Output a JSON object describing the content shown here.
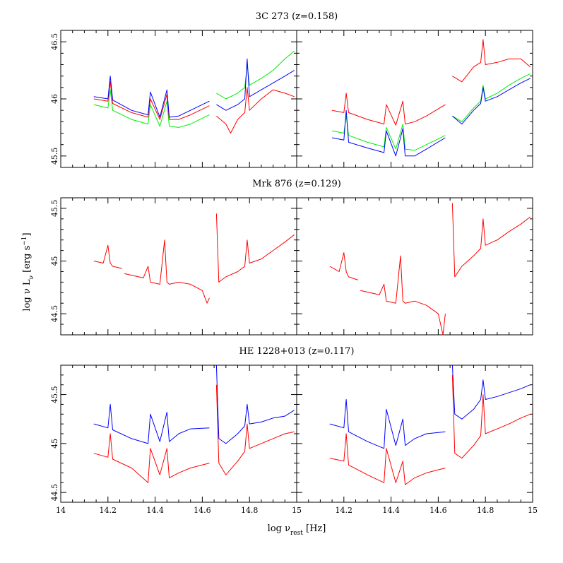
{
  "figure": {
    "ylabel_prefix": "log ν L",
    "ylabel_sub": "ν",
    "ylabel_units": " [erg s",
    "ylabel_exp": "−1",
    "ylabel_close": "]",
    "xlabel_prefix": "log ν",
    "xlabel_sub": "rest",
    "xlabel_units": " [Hz]"
  },
  "colors": {
    "red": "#ff0000",
    "green": "#00ee00",
    "blue": "#0000ff"
  },
  "chart_data": [
    {
      "type": "line",
      "title": "3C 273 (z=0.158)",
      "xlim": [
        14,
        15
      ],
      "ylim": [
        45.4,
        46.6
      ],
      "xticks": [
        "14",
        "14.2",
        "14.4",
        "14.6",
        "14.8",
        "15"
      ],
      "yticks": [
        "45.5",
        "46",
        "46.5"
      ],
      "ytick_values": [
        45.5,
        46,
        46.5
      ],
      "panels": [
        {
          "series": [
            {
              "color": "green",
              "x": [
                14.14,
                14.2,
                14.21,
                14.22,
                14.3,
                14.37,
                14.38,
                14.42,
                14.45,
                14.46,
                14.5,
                14.55,
                14.63
              ],
              "y": [
                45.95,
                45.92,
                46.08,
                45.9,
                45.82,
                45.78,
                45.95,
                45.76,
                45.98,
                45.76,
                45.75,
                45.78,
                45.86
              ]
            },
            {
              "color": "red",
              "x": [
                14.14,
                14.2,
                14.21,
                14.22,
                14.3,
                14.37,
                14.38,
                14.42,
                14.45,
                14.46,
                14.5,
                14.55,
                14.63
              ],
              "y": [
                46.0,
                45.98,
                46.15,
                45.96,
                45.88,
                45.84,
                46.0,
                45.82,
                46.04,
                45.82,
                45.82,
                45.86,
                45.94
              ]
            },
            {
              "color": "blue",
              "x": [
                14.14,
                14.2,
                14.21,
                14.22,
                14.3,
                14.37,
                14.38,
                14.42,
                14.45,
                14.46,
                14.5,
                14.55,
                14.63
              ],
              "y": [
                46.02,
                46.0,
                46.2,
                45.99,
                45.9,
                45.86,
                46.06,
                45.84,
                46.08,
                45.84,
                45.85,
                45.9,
                45.98
              ]
            },
            {
              "color": "green",
              "x": [
                14.66,
                14.7,
                14.75,
                14.78,
                14.79,
                14.8,
                14.85,
                14.9,
                14.95,
                14.99
              ],
              "y": [
                46.05,
                46.0,
                46.05,
                46.1,
                46.3,
                46.12,
                46.18,
                46.25,
                46.35,
                46.42
              ]
            },
            {
              "color": "red",
              "x": [
                14.66,
                14.7,
                14.72,
                14.75,
                14.78,
                14.79,
                14.8,
                14.85,
                14.9,
                14.95,
                14.99
              ],
              "y": [
                45.85,
                45.78,
                45.7,
                45.82,
                45.88,
                46.1,
                45.9,
                46.0,
                46.08,
                46.05,
                46.02
              ]
            },
            {
              "color": "blue",
              "x": [
                14.66,
                14.7,
                14.75,
                14.78,
                14.79,
                14.8,
                14.85,
                14.9,
                14.95,
                14.99
              ],
              "y": [
                45.95,
                45.9,
                45.95,
                46.0,
                46.35,
                46.02,
                46.08,
                46.14,
                46.2,
                46.25
              ]
            }
          ]
        },
        {
          "series": [
            {
              "color": "red",
              "x": [
                14.15,
                14.2,
                14.21,
                14.22,
                14.3,
                14.37,
                14.38,
                14.42,
                14.45,
                14.46,
                14.5,
                14.55,
                14.63
              ],
              "y": [
                45.9,
                45.88,
                46.05,
                45.88,
                45.82,
                45.78,
                45.95,
                45.77,
                45.98,
                45.78,
                45.8,
                45.85,
                45.95
              ]
            },
            {
              "color": "green",
              "x": [
                14.15,
                14.2,
                14.21,
                14.22,
                14.3,
                14.37,
                14.38,
                14.42,
                14.45,
                14.46,
                14.5,
                14.55,
                14.63
              ],
              "y": [
                45.72,
                45.7,
                45.85,
                45.68,
                45.62,
                45.58,
                45.75,
                45.56,
                45.78,
                45.56,
                45.55,
                45.6,
                45.68
              ]
            },
            {
              "color": "blue",
              "x": [
                14.15,
                14.2,
                14.21,
                14.22,
                14.3,
                14.37,
                14.38,
                14.42,
                14.45,
                14.46,
                14.5,
                14.55,
                14.63
              ],
              "y": [
                45.66,
                45.64,
                45.9,
                45.62,
                45.57,
                45.53,
                45.72,
                45.5,
                45.74,
                45.5,
                45.5,
                45.56,
                45.66
              ]
            },
            {
              "color": "red",
              "x": [
                14.66,
                14.7,
                14.75,
                14.78,
                14.79,
                14.8,
                14.85,
                14.9,
                14.95,
                14.99
              ],
              "y": [
                46.2,
                46.15,
                46.28,
                46.32,
                46.52,
                46.3,
                46.32,
                46.35,
                46.35,
                46.28
              ]
            },
            {
              "color": "green",
              "x": [
                14.66,
                14.7,
                14.75,
                14.78,
                14.79,
                14.8,
                14.85,
                14.9,
                14.95,
                14.99
              ],
              "y": [
                45.85,
                45.8,
                45.92,
                45.98,
                46.12,
                46.0,
                46.05,
                46.12,
                46.18,
                46.22
              ]
            },
            {
              "color": "blue",
              "x": [
                14.66,
                14.7,
                14.75,
                14.78,
                14.79,
                14.8,
                14.85,
                14.9,
                14.95,
                14.99
              ],
              "y": [
                45.85,
                45.78,
                45.9,
                45.96,
                46.1,
                45.98,
                46.02,
                46.08,
                46.14,
                46.18
              ]
            }
          ]
        }
      ]
    },
    {
      "type": "line",
      "title": "Mrk 876 (z=0.129)",
      "xlim": [
        14,
        15
      ],
      "ylim": [
        44.3,
        45.6
      ],
      "xticks": [
        "14",
        "14.2",
        "14.4",
        "14.6",
        "14.8",
        "15"
      ],
      "yticks": [
        "44.5",
        "45",
        "45.5"
      ],
      "ytick_values": [
        44.5,
        45,
        45.5
      ],
      "panels": [
        {
          "series": [
            {
              "color": "red",
              "x": [
                14.14,
                14.18,
                14.2,
                14.21,
                14.22,
                14.26
              ],
              "y": [
                45.0,
                44.98,
                45.15,
                44.98,
                44.95,
                44.93
              ]
            },
            {
              "color": "red",
              "x": [
                14.27,
                14.35,
                14.37,
                14.38,
                14.42,
                14.44,
                14.45,
                14.46,
                14.5,
                14.55,
                14.6,
                14.62,
                14.63
              ],
              "y": [
                44.88,
                44.84,
                44.95,
                44.8,
                44.78,
                45.2,
                44.8,
                44.78,
                44.8,
                44.78,
                44.72,
                44.6,
                44.65
              ]
            },
            {
              "color": "red",
              "x": [
                14.66,
                14.67,
                14.7,
                14.75,
                14.78,
                14.79,
                14.8,
                14.85,
                14.9,
                14.95,
                14.99
              ],
              "y": [
                45.45,
                44.8,
                44.85,
                44.9,
                44.95,
                45.2,
                44.98,
                45.02,
                45.1,
                45.18,
                45.25
              ]
            }
          ]
        },
        {
          "series": [
            {
              "color": "red",
              "x": [
                14.14,
                14.18,
                14.2,
                14.21,
                14.22,
                14.26
              ],
              "y": [
                44.95,
                44.9,
                45.08,
                44.9,
                44.85,
                44.82
              ]
            },
            {
              "color": "red",
              "x": [
                14.27,
                14.35,
                14.37,
                14.38,
                14.42,
                14.44,
                14.45,
                14.46,
                14.5,
                14.55,
                14.6,
                14.62,
                14.63
              ],
              "y": [
                44.72,
                44.68,
                44.78,
                44.62,
                44.6,
                45.05,
                44.62,
                44.6,
                44.62,
                44.58,
                44.5,
                44.3,
                44.5
              ]
            },
            {
              "color": "red",
              "x": [
                14.66,
                14.67,
                14.7,
                14.75,
                14.78,
                14.79,
                14.8,
                14.85,
                14.9,
                14.95,
                14.99
              ],
              "y": [
                45.55,
                44.85,
                44.95,
                45.05,
                45.12,
                45.4,
                45.15,
                45.2,
                45.28,
                45.35,
                45.42
              ]
            }
          ]
        }
      ]
    },
    {
      "type": "line",
      "title": "HE 1228+013 (z=0.117)",
      "xlim": [
        14,
        15
      ],
      "ylim": [
        44.4,
        45.8
      ],
      "xticks": [
        "14",
        "14.2",
        "14.4",
        "14.6",
        "14.8",
        "15"
      ],
      "yticks": [
        "44.5",
        "45",
        "45.5"
      ],
      "ytick_values": [
        44.5,
        45,
        45.5
      ],
      "panels": [
        {
          "series": [
            {
              "color": "blue",
              "x": [
                14.14,
                14.2,
                14.21,
                14.22,
                14.3,
                14.37,
                14.38,
                14.42,
                14.45,
                14.46,
                14.5,
                14.55,
                14.63
              ],
              "y": [
                45.2,
                45.16,
                45.4,
                45.14,
                45.05,
                45.0,
                45.3,
                45.02,
                45.32,
                45.02,
                45.1,
                45.15,
                45.16
              ]
            },
            {
              "color": "red",
              "x": [
                14.14,
                14.2,
                14.21,
                14.22,
                14.3,
                14.37,
                14.38,
                14.42,
                14.45,
                14.46,
                14.5,
                14.55,
                14.63
              ],
              "y": [
                44.9,
                44.86,
                45.1,
                44.84,
                44.75,
                44.6,
                44.95,
                44.68,
                44.95,
                44.65,
                44.7,
                44.75,
                44.8
              ]
            },
            {
              "color": "blue",
              "x": [
                14.66,
                14.67,
                14.7,
                14.75,
                14.78,
                14.79,
                14.8,
                14.85,
                14.9,
                14.95,
                14.99
              ],
              "y": [
                45.8,
                45.05,
                45.0,
                45.1,
                45.18,
                45.4,
                45.2,
                45.22,
                45.26,
                45.28,
                45.34
              ]
            },
            {
              "color": "red",
              "x": [
                14.66,
                14.67,
                14.7,
                14.75,
                14.78,
                14.79,
                14.8,
                14.85,
                14.9,
                14.95,
                14.99
              ],
              "y": [
                45.6,
                44.8,
                44.68,
                44.82,
                44.92,
                45.2,
                44.95,
                45.0,
                45.05,
                45.1,
                45.12
              ]
            }
          ]
        },
        {
          "series": [
            {
              "color": "blue",
              "x": [
                14.14,
                14.2,
                14.21,
                14.22,
                14.3,
                14.37,
                14.38,
                14.42,
                14.45,
                14.46,
                14.5,
                14.55,
                14.63
              ],
              "y": [
                45.2,
                45.16,
                45.45,
                45.12,
                45.02,
                44.95,
                45.35,
                44.98,
                45.25,
                44.98,
                45.05,
                45.1,
                45.12
              ]
            },
            {
              "color": "red",
              "x": [
                14.14,
                14.2,
                14.21,
                14.22,
                14.3,
                14.37,
                14.38,
                14.42,
                14.45,
                14.46,
                14.5,
                14.55,
                14.63
              ],
              "y": [
                44.85,
                44.82,
                45.1,
                44.78,
                44.68,
                44.6,
                44.95,
                44.6,
                44.82,
                44.58,
                44.65,
                44.7,
                44.75
              ]
            },
            {
              "color": "blue",
              "x": [
                14.66,
                14.67,
                14.7,
                14.75,
                14.78,
                14.79,
                14.8,
                14.85,
                14.9,
                14.95,
                14.99
              ],
              "y": [
                45.8,
                45.3,
                45.25,
                45.35,
                45.45,
                45.65,
                45.45,
                45.48,
                45.52,
                45.56,
                45.6
              ]
            },
            {
              "color": "red",
              "x": [
                14.66,
                14.67,
                14.7,
                14.75,
                14.78,
                14.79,
                14.8,
                14.85,
                14.9,
                14.95,
                14.99
              ],
              "y": [
                45.7,
                44.9,
                44.85,
                44.98,
                45.08,
                45.5,
                45.1,
                45.15,
                45.2,
                45.26,
                45.3
              ]
            }
          ]
        }
      ]
    }
  ]
}
